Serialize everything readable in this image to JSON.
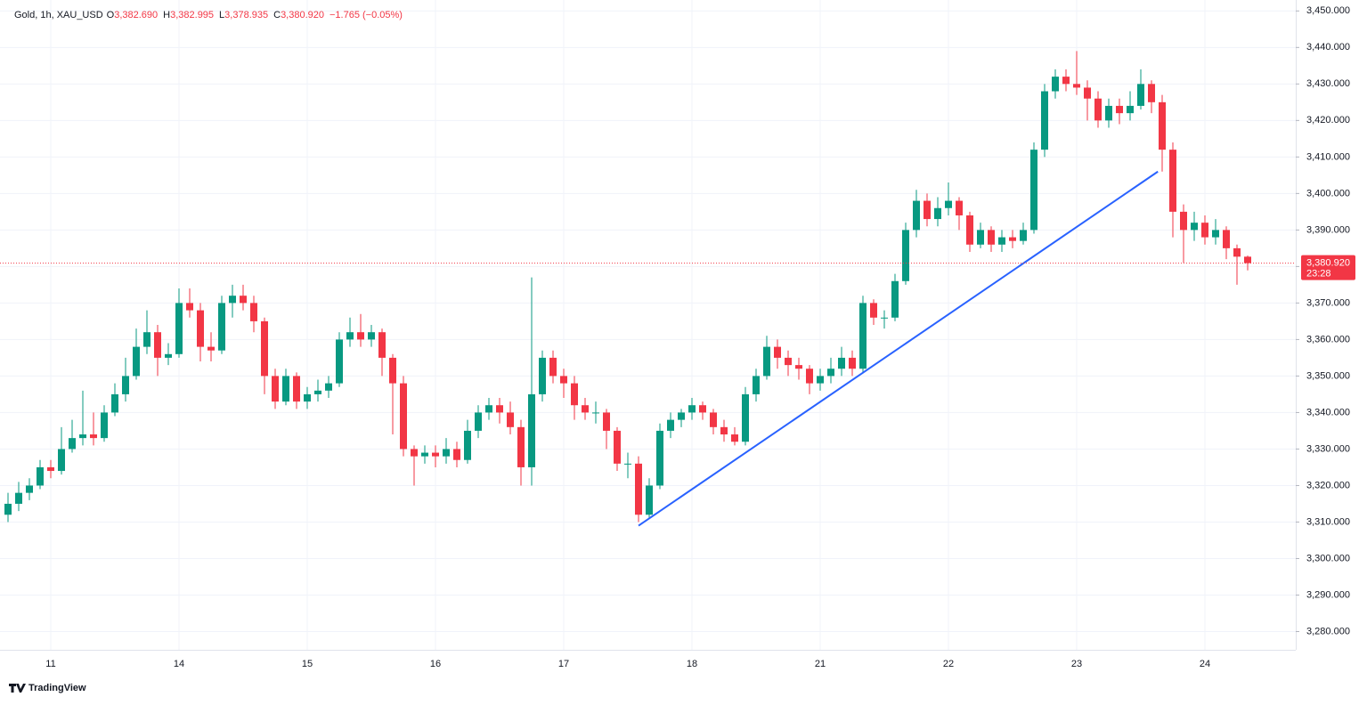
{
  "header": {
    "symbol": "Gold, 1h, XAU_USD",
    "fields": [
      {
        "key": "O",
        "value": "3,382.690"
      },
      {
        "key": "H",
        "value": "3,382.995"
      },
      {
        "key": "L",
        "value": "3,378.935"
      },
      {
        "key": "C",
        "value": "3,380.920"
      }
    ],
    "change": "−1.765 (−0.05%)"
  },
  "footer": {
    "brand": "TradingView"
  },
  "chart_data": {
    "type": "candlestick",
    "up_color": "#089981",
    "down_color": "#f23645",
    "categories": [
      null,
      null,
      null,
      null,
      "11",
      null,
      null,
      null,
      null,
      null,
      null,
      null,
      null,
      null,
      null,
      null,
      "14",
      null,
      null,
      null,
      null,
      null,
      null,
      null,
      null,
      null,
      null,
      null,
      "15",
      null,
      null,
      null,
      null,
      null,
      null,
      null,
      null,
      null,
      null,
      null,
      "16",
      null,
      null,
      null,
      null,
      null,
      null,
      null,
      null,
      null,
      null,
      null,
      "17",
      null,
      null,
      null,
      null,
      null,
      null,
      null,
      null,
      null,
      null,
      null,
      "18",
      null,
      null,
      null,
      null,
      null,
      null,
      null,
      null,
      null,
      null,
      null,
      "21",
      null,
      null,
      null,
      null,
      null,
      null,
      null,
      null,
      null,
      null,
      null,
      "22",
      null,
      null,
      null,
      null,
      null,
      null,
      null,
      null,
      null,
      null,
      null,
      "23",
      null,
      null,
      null,
      null,
      null,
      null,
      null,
      null,
      null,
      null,
      null,
      "24",
      null,
      null,
      null,
      null
    ],
    "open": [
      3312,
      3315,
      3318,
      3320,
      3325,
      3324,
      3330,
      3333,
      3334,
      3333,
      3340,
      3345,
      3350,
      3358,
      3362,
      3355,
      3356,
      3370,
      3368,
      3358,
      3357,
      3370,
      3372,
      3370,
      3365,
      3350,
      3343,
      3350,
      3343,
      3345,
      3346,
      3348,
      3360,
      3362,
      3360,
      3362,
      3355,
      3348,
      3330,
      3328,
      3329,
      3328,
      3330,
      3327,
      3335,
      3340,
      3342,
      3340,
      3336,
      3325,
      3345,
      3355,
      3350,
      3348,
      3342,
      3340,
      3340,
      3335,
      3326,
      3326,
      3312,
      3320,
      3335,
      3338,
      3340,
      3342,
      3340,
      3336,
      3334,
      3332,
      3345,
      3350,
      3358,
      3355,
      3353,
      3352,
      3348,
      3350,
      3352,
      3355,
      3352,
      3370,
      3366,
      3366,
      3376,
      3390,
      3398,
      3393,
      3396,
      3398,
      3394,
      3386,
      3390,
      3386,
      3388,
      3387,
      3390,
      3412,
      3428,
      3432,
      3430,
      3429,
      3426,
      3420,
      3424,
      3422,
      3424,
      3430,
      3425,
      3412,
      3395,
      3390,
      3392,
      3388,
      3390,
      3385,
      3382.69
    ],
    "high": [
      3318,
      3321,
      3322,
      3327,
      3327,
      3336,
      3338,
      3346,
      3340,
      3342,
      3348,
      3355,
      3363,
      3368,
      3364,
      3359,
      3374,
      3374,
      3370,
      3362,
      3372,
      3375,
      3375,
      3372,
      3366,
      3352,
      3352,
      3351,
      3347,
      3349,
      3350,
      3362,
      3366,
      3367,
      3364,
      3363,
      3356,
      3350,
      3331,
      3331,
      3331,
      3333,
      3332,
      3338,
      3342,
      3344,
      3344,
      3343,
      3338,
      3377,
      3357,
      3357,
      3352,
      3350,
      3344,
      3343,
      3341,
      3336,
      3329,
      3328,
      3322,
      3337,
      3340,
      3341,
      3344,
      3343,
      3341,
      3338,
      3336,
      3347,
      3352,
      3361,
      3360,
      3357,
      3355,
      3353,
      3352,
      3355,
      3358,
      3357,
      3372,
      3371,
      3368,
      3378,
      3392,
      3401,
      3400,
      3399,
      3403,
      3399,
      3395,
      3392,
      3391,
      3390,
      3390,
      3392,
      3414,
      3430,
      3434,
      3434,
      3439,
      3431,
      3428,
      3426,
      3426,
      3428,
      3434,
      3431,
      3427,
      3414,
      3397,
      3395,
      3394,
      3393,
      3391,
      3386,
      3382.995
    ],
    "low": [
      3310,
      3313,
      3316,
      3319,
      3322,
      3323,
      3329,
      3331,
      3331,
      3332,
      3339,
      3343,
      3349,
      3356,
      3350,
      3353,
      3355,
      3366,
      3354,
      3354,
      3356,
      3366,
      3368,
      3362,
      3345,
      3341,
      3342,
      3341,
      3341,
      3343,
      3344,
      3347,
      3358,
      3358,
      3358,
      3350,
      3334,
      3328,
      3320,
      3326,
      3325,
      3326,
      3325,
      3326,
      3333,
      3338,
      3337,
      3334,
      3320,
      3320,
      3343,
      3348,
      3344,
      3338,
      3338,
      3337,
      3330,
      3324,
      3322,
      3310,
      3311,
      3319,
      3333,
      3336,
      3338,
      3338,
      3334,
      3332,
      3331,
      3331,
      3343,
      3349,
      3352,
      3350,
      3349,
      3345,
      3346,
      3348,
      3350,
      3350,
      3351,
      3364,
      3363,
      3365,
      3375,
      3388,
      3391,
      3391,
      3394,
      3390,
      3384,
      3385,
      3384,
      3384,
      3385,
      3386,
      3389,
      3410,
      3426,
      3428,
      3427,
      3420,
      3418,
      3418,
      3419,
      3420,
      3423,
      3422,
      3406,
      3388,
      3381,
      3387,
      3386,
      3386,
      3382,
      3375,
      3378.935
    ],
    "close": [
      3315,
      3318,
      3320,
      3325,
      3324,
      3330,
      3333,
      3334,
      3333,
      3340,
      3345,
      3350,
      3358,
      3362,
      3355,
      3356,
      3370,
      3368,
      3358,
      3357,
      3370,
      3372,
      3370,
      3365,
      3350,
      3343,
      3350,
      3343,
      3345,
      3346,
      3348,
      3360,
      3362,
      3360,
      3362,
      3355,
      3348,
      3330,
      3328,
      3329,
      3328,
      3330,
      3327,
      3335,
      3340,
      3342,
      3340,
      3336,
      3325,
      3345,
      3355,
      3350,
      3348,
      3342,
      3340,
      3340,
      3335,
      3326,
      3326,
      3312,
      3320,
      3335,
      3338,
      3340,
      3342,
      3340,
      3336,
      3334,
      3332,
      3345,
      3350,
      3358,
      3355,
      3353,
      3352,
      3348,
      3350,
      3352,
      3355,
      3352,
      3370,
      3366,
      3366,
      3376,
      3390,
      3398,
      3393,
      3396,
      3398,
      3394,
      3386,
      3390,
      3386,
      3388,
      3387,
      3390,
      3412,
      3428,
      3432,
      3430,
      3429,
      3426,
      3420,
      3424,
      3422,
      3424,
      3430,
      3425,
      3412,
      3395,
      3390,
      3392,
      3388,
      3390,
      3385,
      3382.69,
      3380.92
    ],
    "ylim": [
      3275,
      3453
    ],
    "yticks": [
      {
        "value": 3280,
        "label": "3,280.000"
      },
      {
        "value": 3290,
        "label": "3,290.000"
      },
      {
        "value": 3300,
        "label": "3,300.000"
      },
      {
        "value": 3310,
        "label": "3,310.000"
      },
      {
        "value": 3320,
        "label": "3,320.000"
      },
      {
        "value": 3330,
        "label": "3,330.000"
      },
      {
        "value": 3340,
        "label": "3,340.000"
      },
      {
        "value": 3350,
        "label": "3,350.000"
      },
      {
        "value": 3360,
        "label": "3,360.000"
      },
      {
        "value": 3370,
        "label": "3,370.000"
      },
      {
        "value": 3380,
        "label": "3,380.000"
      },
      {
        "value": 3390,
        "label": "3,390.000"
      },
      {
        "value": 3400,
        "label": "3,400.000"
      },
      {
        "value": 3410,
        "label": "3,410.000"
      },
      {
        "value": 3420,
        "label": "3,420.000"
      },
      {
        "value": 3430,
        "label": "3,430.000"
      },
      {
        "value": 3440,
        "label": "3,440.000"
      },
      {
        "value": 3450,
        "label": "3,450.000"
      }
    ],
    "grid": true,
    "last_price": {
      "label": "3,380.920",
      "countdown": "23:28"
    },
    "trendline": {
      "x": [
        59,
        107.6
      ],
      "y": [
        3309,
        3406
      ],
      "color": "#2962ff"
    }
  }
}
